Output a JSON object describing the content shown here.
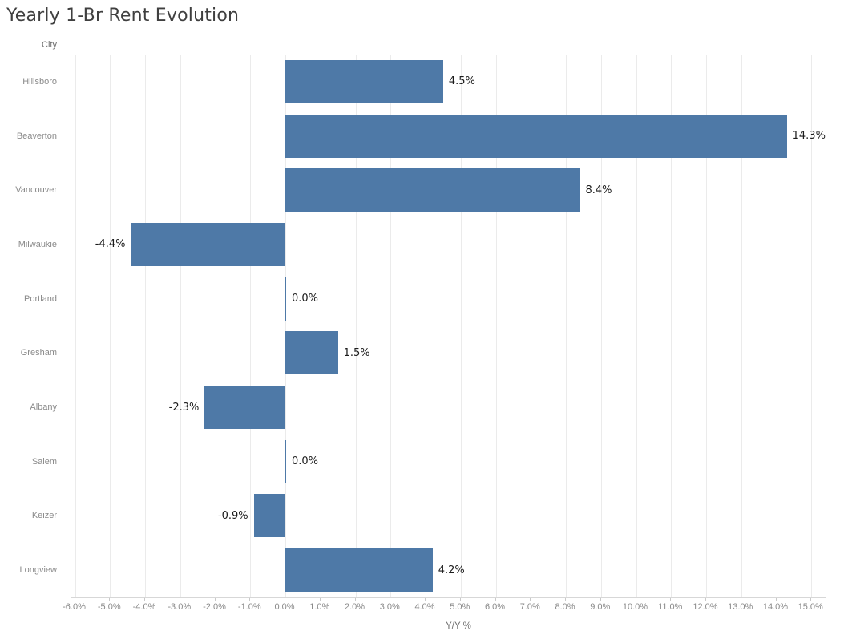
{
  "title": "Yearly 1-Br Rent Evolution",
  "row_field": "City",
  "x_axis": {
    "title": "Y/Y %",
    "tick_labels": [
      "-6.0%",
      "-5.0%",
      "-4.0%",
      "-3.0%",
      "-2.0%",
      "-1.0%",
      "0.0%",
      "1.0%",
      "2.0%",
      "3.0%",
      "4.0%",
      "5.0%",
      "6.0%",
      "7.0%",
      "8.0%",
      "9.0%",
      "10.0%",
      "11.0%",
      "12.0%",
      "13.0%",
      "14.0%",
      "15.0%"
    ],
    "tick_start": -6,
    "tick_step": 1
  },
  "colors": {
    "bar": "#4e79a7",
    "value_label": "#1c1c1c",
    "axis_text": "#8a8a8a",
    "title_text": "#3f3f3f",
    "gridline": "#ebebeb",
    "axis_line": "#d7d7d7"
  },
  "chart_data": {
    "type": "bar",
    "orientation": "horizontal",
    "title": "Yearly 1-Br Rent Evolution",
    "xlabel": "Y/Y %",
    "ylabel": "City",
    "xlim": [
      -6.1,
      15.5
    ],
    "grid": "vertical, 1% steps",
    "legend": "none",
    "categories": [
      "Hillsboro",
      "Beaverton",
      "Vancouver",
      "Milwaukie",
      "Portland",
      "Gresham",
      "Albany",
      "Salem",
      "Keizer",
      "Longview"
    ],
    "values": [
      4.5,
      14.3,
      8.4,
      -4.4,
      0.0,
      1.5,
      -2.3,
      0.0,
      -0.9,
      4.2
    ],
    "value_labels": [
      "4.5%",
      "14.3%",
      "8.4%",
      "-4.4%",
      "0.0%",
      "1.5%",
      "-2.3%",
      "0.0%",
      "-0.9%",
      "4.2%"
    ]
  }
}
